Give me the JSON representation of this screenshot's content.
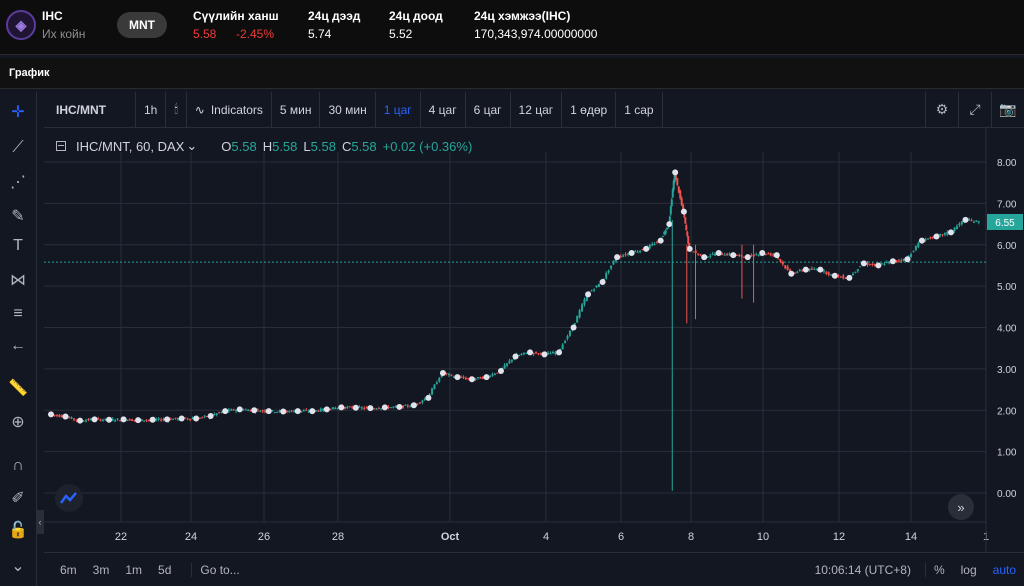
{
  "coin": {
    "symbol": "IHC",
    "name": "Их койн",
    "quote": "MNT"
  },
  "stats": {
    "last_label": "Сүүлийн ханш",
    "last_value": "5.58",
    "change": "-2.45%",
    "high_label": "24ц дээд",
    "high_value": "5.74",
    "low_label": "24ц доод",
    "low_value": "5.52",
    "volume_label": "24ц хэмжээ(IHC)",
    "volume_value": "170,343,974.00000000"
  },
  "section_title": "График",
  "toolbar": {
    "symbol": "IHC/MNT",
    "indicators": "Indicators",
    "intervals": [
      "1h",
      "5 мин",
      "30 мин",
      "1 цаг",
      "4 цаг",
      "6 цаг",
      "12 цаг",
      "1 өдөр",
      "1 сар"
    ],
    "active_interval": "1 цаг"
  },
  "legend": {
    "title": "IHC/MNT, 60, DAX",
    "o_label": "O",
    "o_value": "5.58",
    "h_label": "H",
    "h_value": "5.58",
    "l_label": "L",
    "l_value": "5.58",
    "c_label": "C",
    "c_value": "5.58",
    "change": "+0.02 (+0.36%)"
  },
  "bottom": {
    "ranges": [
      "6m",
      "3m",
      "1m",
      "5d"
    ],
    "goto": "Go to...",
    "time": "10:06:14 (UTC+8)",
    "percent": "%",
    "log": "log",
    "auto": "auto"
  },
  "colors": {
    "up": "#26a69a",
    "down": "#ef5350",
    "accent": "#2962ff",
    "bg": "#131722",
    "grid": "#2a2e39"
  },
  "chart_data": {
    "type": "candlestick",
    "y_ticks": [
      "8.00",
      "7.00",
      "6.00",
      "5.00",
      "4.00",
      "3.00",
      "2.00",
      "1.00",
      "0.00"
    ],
    "ylim": [
      0,
      8
    ],
    "x_ticks": [
      "22",
      "24",
      "26",
      "28",
      "Oct",
      "4",
      "6",
      "8",
      "10",
      "12",
      "14",
      "1"
    ],
    "last_price_label": "6.55",
    "last_price": 6.55,
    "dotted_line": 5.58,
    "series": [
      {
        "d": 0.0,
        "v": 1.9
      },
      {
        "d": 0.5,
        "v": 1.85
      },
      {
        "d": 1.0,
        "v": 1.75
      },
      {
        "d": 1.5,
        "v": 1.78
      },
      {
        "d": 2.0,
        "v": 1.77
      },
      {
        "d": 2.5,
        "v": 1.78
      },
      {
        "d": 3.0,
        "v": 1.76
      },
      {
        "d": 3.5,
        "v": 1.77
      },
      {
        "d": 4.0,
        "v": 1.78
      },
      {
        "d": 4.5,
        "v": 1.8
      },
      {
        "d": 5.0,
        "v": 1.8
      },
      {
        "d": 5.5,
        "v": 1.86
      },
      {
        "d": 6.0,
        "v": 1.98
      },
      {
        "d": 6.5,
        "v": 2.02
      },
      {
        "d": 7.0,
        "v": 2.0
      },
      {
        "d": 7.5,
        "v": 1.98
      },
      {
        "d": 8.0,
        "v": 1.97
      },
      {
        "d": 8.5,
        "v": 1.98
      },
      {
        "d": 9.0,
        "v": 1.98
      },
      {
        "d": 9.5,
        "v": 2.02
      },
      {
        "d": 10.0,
        "v": 2.07
      },
      {
        "d": 10.5,
        "v": 2.06
      },
      {
        "d": 11.0,
        "v": 2.05
      },
      {
        "d": 11.5,
        "v": 2.07
      },
      {
        "d": 12.0,
        "v": 2.08
      },
      {
        "d": 12.5,
        "v": 2.12
      },
      {
        "d": 13.0,
        "v": 2.3
      },
      {
        "d": 13.5,
        "v": 2.9
      },
      {
        "d": 14.0,
        "v": 2.8
      },
      {
        "d": 14.5,
        "v": 2.75
      },
      {
        "d": 15.0,
        "v": 2.8
      },
      {
        "d": 15.5,
        "v": 2.95
      },
      {
        "d": 16.0,
        "v": 3.3
      },
      {
        "d": 16.5,
        "v": 3.4
      },
      {
        "d": 17.0,
        "v": 3.35
      },
      {
        "d": 17.5,
        "v": 3.4
      },
      {
        "d": 18.0,
        "v": 4.0
      },
      {
        "d": 18.5,
        "v": 4.8
      },
      {
        "d": 19.0,
        "v": 5.1
      },
      {
        "d": 19.5,
        "v": 5.7
      },
      {
        "d": 20.0,
        "v": 5.8
      },
      {
        "d": 20.5,
        "v": 5.9
      },
      {
        "d": 21.0,
        "v": 6.1
      },
      {
        "d": 21.3,
        "v": 6.5
      },
      {
        "d": 21.5,
        "v": 7.75
      },
      {
        "d": 21.8,
        "v": 6.8
      },
      {
        "d": 22.0,
        "v": 5.9
      },
      {
        "d": 22.5,
        "v": 5.7
      },
      {
        "d": 23.0,
        "v": 5.8
      },
      {
        "d": 23.5,
        "v": 5.75
      },
      {
        "d": 24.0,
        "v": 5.7
      },
      {
        "d": 24.5,
        "v": 5.8
      },
      {
        "d": 25.0,
        "v": 5.75
      },
      {
        "d": 25.5,
        "v": 5.3
      },
      {
        "d": 26.0,
        "v": 5.4
      },
      {
        "d": 26.5,
        "v": 5.4
      },
      {
        "d": 27.0,
        "v": 5.25
      },
      {
        "d": 27.5,
        "v": 5.2
      },
      {
        "d": 28.0,
        "v": 5.55
      },
      {
        "d": 28.5,
        "v": 5.5
      },
      {
        "d": 29.0,
        "v": 5.6
      },
      {
        "d": 29.5,
        "v": 5.65
      },
      {
        "d": 30.0,
        "v": 6.1
      },
      {
        "d": 30.5,
        "v": 6.2
      },
      {
        "d": 31.0,
        "v": 6.3
      },
      {
        "d": 31.5,
        "v": 6.6
      },
      {
        "d": 32.0,
        "v": 6.55
      }
    ]
  }
}
